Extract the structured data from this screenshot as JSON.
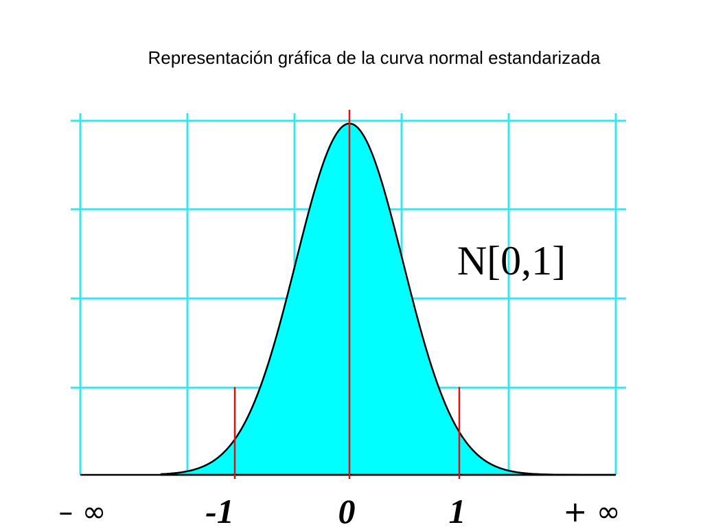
{
  "title": "Representación gráfica de la curva normal estandarizada",
  "x_labels": [
    "– ∞",
    "-1",
    "0",
    "1",
    "+ ∞"
  ],
  "annotation": "N[0,1]"
}
